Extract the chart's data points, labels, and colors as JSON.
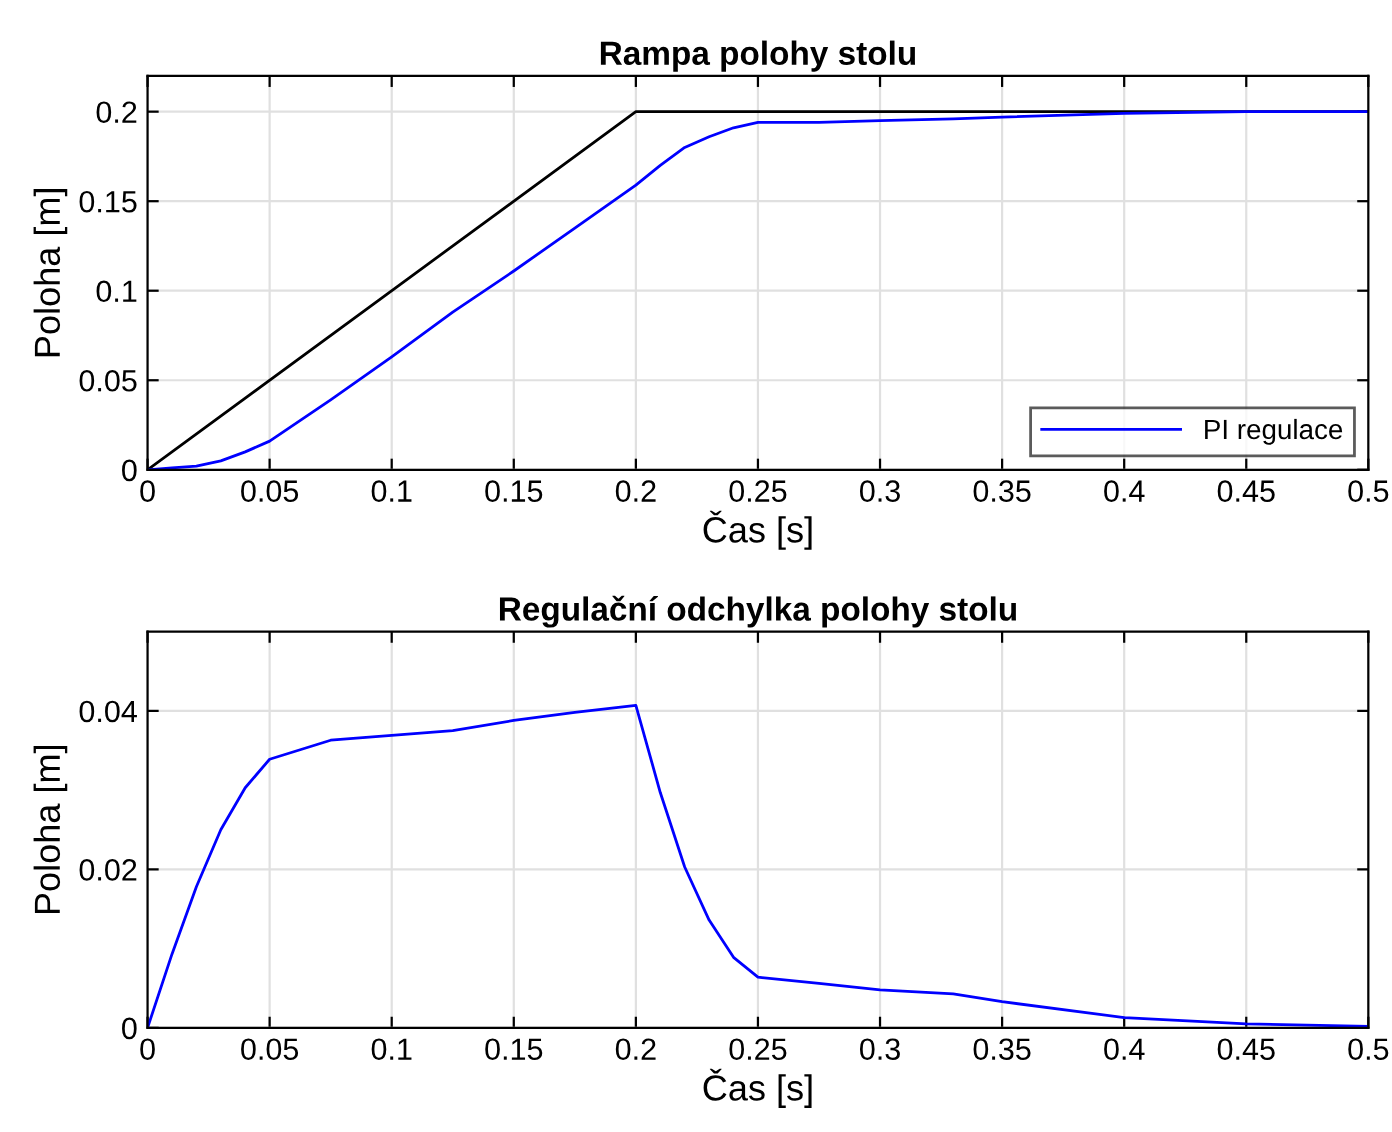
{
  "chart_data": [
    {
      "type": "line",
      "title": "Rampa polohy stolu",
      "xlabel": "Čas [s]",
      "ylabel": "Poloha [m]",
      "xlim": [
        0,
        0.5
      ],
      "xticks": [
        0,
        0.05,
        0.1,
        0.15,
        0.2,
        0.25,
        0.3,
        0.35,
        0.4,
        0.45,
        0.5
      ],
      "ylim": [
        0,
        0.22
      ],
      "yticks": [
        0,
        0.05,
        0.1,
        0.15,
        0.2
      ],
      "grid": true,
      "legend": "bottom right",
      "series": [
        {
          "color": "#000000",
          "x": [
            0,
            0.2,
            0.5
          ],
          "values": [
            0,
            0.2,
            0.2
          ]
        },
        {
          "name": "PI regulace",
          "color": "#0000ff",
          "x": [
            0,
            0.01,
            0.02,
            0.03,
            0.04,
            0.05,
            0.075,
            0.1,
            0.125,
            0.15,
            0.175,
            0.2,
            0.21,
            0.22,
            0.23,
            0.24,
            0.25,
            0.275,
            0.3,
            0.33,
            0.35,
            0.4,
            0.45,
            0.5
          ],
          "values": [
            0,
            0.001,
            0.002,
            0.005,
            0.01,
            0.016,
            0.039,
            0.063,
            0.088,
            0.111,
            0.135,
            0.159,
            0.17,
            0.18,
            0.186,
            0.191,
            0.194,
            0.194,
            0.195,
            0.196,
            0.197,
            0.199,
            0.2,
            0.2
          ]
        }
      ]
    },
    {
      "type": "line",
      "title": "Regulační odchylka polohy stolu",
      "xlabel": "Čas [s]",
      "ylabel": "Poloha [m]",
      "xlim": [
        0,
        0.5
      ],
      "xticks": [
        0,
        0.05,
        0.1,
        0.15,
        0.2,
        0.25,
        0.3,
        0.35,
        0.4,
        0.45,
        0.5
      ],
      "ylim": [
        0,
        0.05
      ],
      "yticks": [
        0,
        0.02,
        0.04
      ],
      "grid": true,
      "series": [
        {
          "color": "#0000ff",
          "x": [
            0,
            0.01,
            0.02,
            0.03,
            0.04,
            0.05,
            0.075,
            0.1,
            0.125,
            0.15,
            0.175,
            0.2,
            0.21,
            0.22,
            0.23,
            0.24,
            0.25,
            0.275,
            0.3,
            0.33,
            0.35,
            0.4,
            0.45,
            0.5
          ],
          "values": [
            0,
            0.0093,
            0.0178,
            0.025,
            0.0303,
            0.0339,
            0.0363,
            0.0369,
            0.0375,
            0.0388,
            0.0398,
            0.0407,
            0.0297,
            0.0203,
            0.0136,
            0.0089,
            0.0064,
            0.0056,
            0.0048,
            0.0043,
            0.0033,
            0.0013,
            0.0005,
            0.0002
          ]
        }
      ]
    }
  ]
}
